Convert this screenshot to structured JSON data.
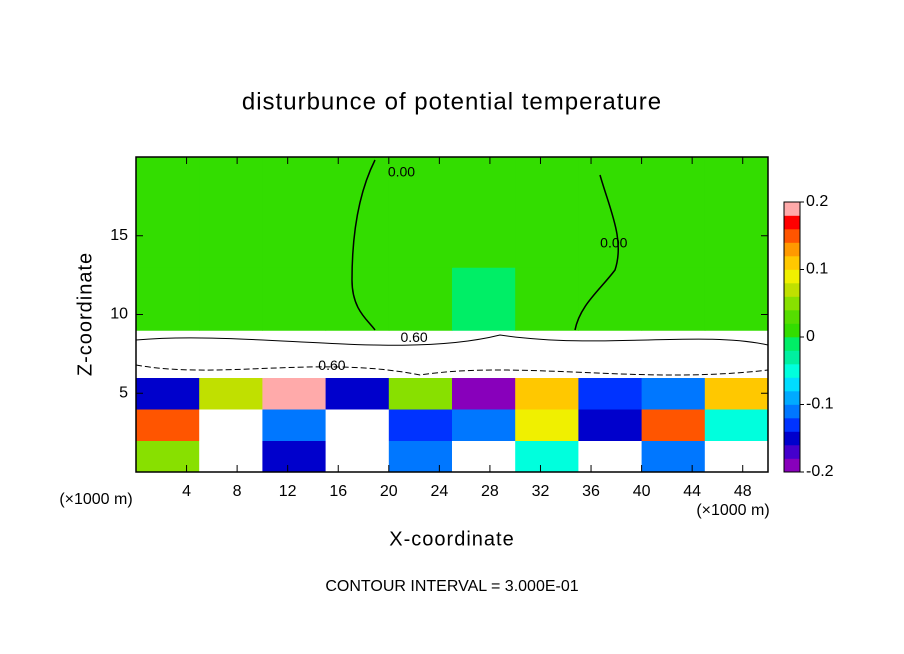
{
  "chart_data": {
    "type": "heatmap",
    "title": "disturbunce of potential temperature",
    "x_label": "X-coordinate",
    "y_label": "Z-coordinate",
    "x_unit": "(×1000 m)",
    "footnote": "CONTOUR INTERVAL = 3.000E-01",
    "xlim": [
      0,
      50
    ],
    "ylim": [
      0,
      20
    ],
    "xticks": [
      4,
      8,
      12,
      16,
      20,
      24,
      28,
      32,
      36,
      40,
      44,
      48
    ],
    "yticks": [
      5,
      10,
      15
    ],
    "x_edges": [
      0,
      5,
      10,
      15,
      20,
      25,
      30,
      35,
      40,
      45,
      50
    ],
    "y_edges": [
      0,
      2,
      4,
      6,
      8,
      9,
      13,
      20
    ],
    "values": [
      [
        0.05,
        0.25,
        -0.15,
        0.25,
        -0.1,
        0.25,
        -0.05,
        0.25,
        -0.1,
        0.25
      ],
      [
        0.15,
        0.25,
        -0.1,
        0.25,
        -0.12,
        -0.1,
        0.1,
        -0.15,
        0.15,
        -0.05
      ],
      [
        -0.15,
        0.08,
        0.2,
        -0.15,
        0.05,
        -0.18,
        0.12,
        -0.12,
        -0.1,
        0.12
      ],
      [
        0.25,
        0.25,
        0.25,
        0.25,
        0.25,
        0.25,
        0.25,
        0.25,
        0.25,
        0.25
      ],
      [
        0.25,
        0.25,
        0.25,
        0.25,
        0.25,
        0.25,
        0.25,
        0.25,
        0.25,
        0.25
      ],
      [
        0.01,
        0.01,
        0.01,
        0.01,
        0.01,
        -0.01,
        0.01,
        0.01,
        0.01,
        0.01
      ],
      [
        0.01,
        0.01,
        0.01,
        0.01,
        0.01,
        0.01,
        0.01,
        0.01,
        0.01,
        0.01
      ]
    ],
    "out_of_range_color": "#ffffff",
    "colorbar": {
      "levels": [
        -0.2,
        -0.18,
        -0.16,
        -0.14,
        -0.12,
        -0.1,
        -0.08,
        -0.06,
        -0.04,
        -0.02,
        0,
        0.02,
        0.04,
        0.06,
        0.08,
        0.1,
        0.12,
        0.14,
        0.16,
        0.18,
        0.2
      ],
      "colors": [
        "#8800bb",
        "#4400cc",
        "#0000cc",
        "#0033ff",
        "#0077ff",
        "#00aaff",
        "#00ddff",
        "#00ffdd",
        "#00f0a0",
        "#00ee66",
        "#33dd00",
        "#55dd00",
        "#88e000",
        "#c0e000",
        "#f0f000",
        "#ffc800",
        "#ff9900",
        "#ff5500",
        "#ff0000",
        "#ffaaaa"
      ],
      "ticks": [
        -0.2,
        -0.1,
        0,
        0.1,
        0.2
      ]
    },
    "annotations": [
      {
        "text": "0.00",
        "x": 21,
        "y": 19
      },
      {
        "text": "0.00",
        "x": 37.8,
        "y": 14.5
      },
      {
        "text": "0.60",
        "x": 15.5,
        "y": 6.7
      },
      {
        "text": "0.60",
        "x": 22,
        "y": 8.5
      }
    ]
  }
}
